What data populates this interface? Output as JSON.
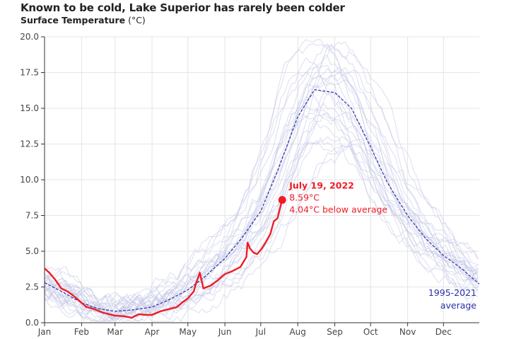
{
  "chart_data": {
    "type": "line",
    "title": "Known to be cold, Lake Superior has rarely been colder",
    "ylabel": "Surface Temperature",
    "ylabel_unit": "(°C)",
    "ylim": [
      0,
      20
    ],
    "yticks": [
      "0.0",
      "2.5",
      "5.0",
      "7.5",
      "10.0",
      "12.5",
      "15.0",
      "17.5",
      "20.0"
    ],
    "xticks": [
      "Jan",
      "Feb",
      "Mar",
      "Apr",
      "May",
      "Jun",
      "Jul",
      "Aug",
      "Sep",
      "Oct",
      "Nov",
      "Dec"
    ],
    "x_unit": "day of year",
    "grid": true,
    "colors": {
      "year_2022": "#ee1c24",
      "average": "#2a2fa8",
      "historical": "#c5c8e6"
    },
    "series": [
      {
        "name": "1995-2021 average",
        "style": "dashed",
        "x": [
          1,
          15,
          32,
          45,
          60,
          75,
          91,
          105,
          121,
          135,
          152,
          166,
          182,
          196,
          213,
          227,
          244,
          258,
          274,
          288,
          305,
          320,
          335,
          350,
          365
        ],
        "y": [
          2.8,
          2.2,
          1.4,
          1.0,
          0.8,
          0.9,
          1.1,
          1.6,
          2.3,
          3.2,
          4.5,
          5.9,
          7.8,
          10.6,
          14.4,
          16.3,
          16.1,
          15.0,
          12.3,
          9.8,
          7.5,
          5.9,
          4.7,
          3.8,
          2.7
        ]
      },
      {
        "name": "2022",
        "x": [
          1,
          5,
          10,
          15,
          20,
          25,
          32,
          36,
          41,
          50,
          60,
          68,
          74,
          80,
          85,
          91,
          98,
          105,
          112,
          116,
          121,
          126,
          128,
          131,
          134,
          140,
          145,
          152,
          158,
          165,
          170,
          171,
          173,
          176,
          179,
          183,
          186,
          190,
          193,
          196,
          200
        ],
        "y": [
          3.8,
          3.5,
          3.0,
          2.4,
          2.2,
          1.9,
          1.4,
          1.1,
          1.0,
          0.7,
          0.5,
          0.45,
          0.35,
          0.6,
          0.55,
          0.55,
          0.8,
          0.95,
          1.1,
          1.4,
          1.7,
          2.2,
          2.8,
          3.5,
          2.4,
          2.6,
          2.9,
          3.4,
          3.6,
          3.9,
          4.6,
          5.6,
          5.2,
          4.9,
          4.8,
          5.2,
          5.6,
          6.2,
          7.1,
          7.3,
          8.59
        ]
      }
    ],
    "historical_years": "1995-2021",
    "annotation": {
      "date": "July 19, 2022",
      "value": "8.59°C",
      "diff": "4.04°C below average"
    },
    "legend": {
      "line1": "1995-2021",
      "line2": "average",
      "placement": "bottom-right"
    }
  }
}
